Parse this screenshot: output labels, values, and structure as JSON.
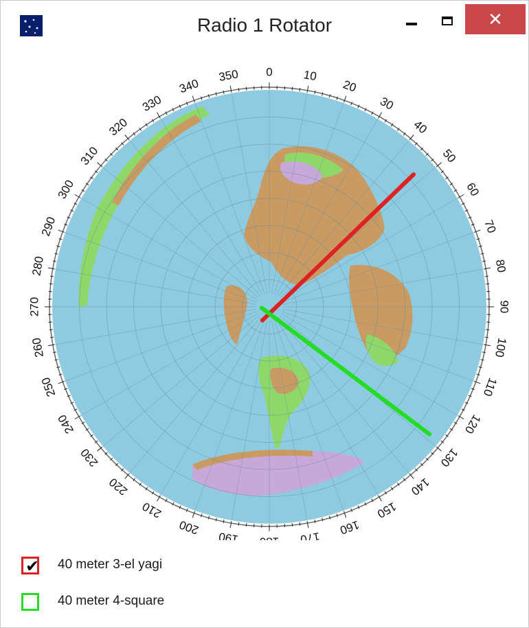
{
  "window": {
    "title": "Radio 1 Rotator",
    "minimize_icon": "minimize-icon",
    "maximize_icon": "maximize-icon",
    "close_label": "✕"
  },
  "compass": {
    "labels": [
      "0",
      "10",
      "20",
      "30",
      "40",
      "50",
      "60",
      "70",
      "80",
      "90",
      "100",
      "110",
      "120",
      "130",
      "140",
      "150",
      "160",
      "170",
      "180",
      "190",
      "200",
      "210",
      "220",
      "230",
      "240",
      "250",
      "260",
      "270",
      "280",
      "290",
      "300",
      "310",
      "320",
      "330",
      "340",
      "350"
    ]
  },
  "antennas": [
    {
      "name": "40 meter 3-el yagi",
      "checked": true,
      "color": "#dd2222",
      "heading_deg": 46
    },
    {
      "name": "40 meter 4-square",
      "checked": false,
      "color": "#22dd22",
      "heading_deg": 127
    }
  ],
  "colors": {
    "ocean": "#8fcbe0",
    "land_low": "#8ed86a",
    "land_mid": "#c99a62",
    "ice": "#c7a8d8"
  }
}
